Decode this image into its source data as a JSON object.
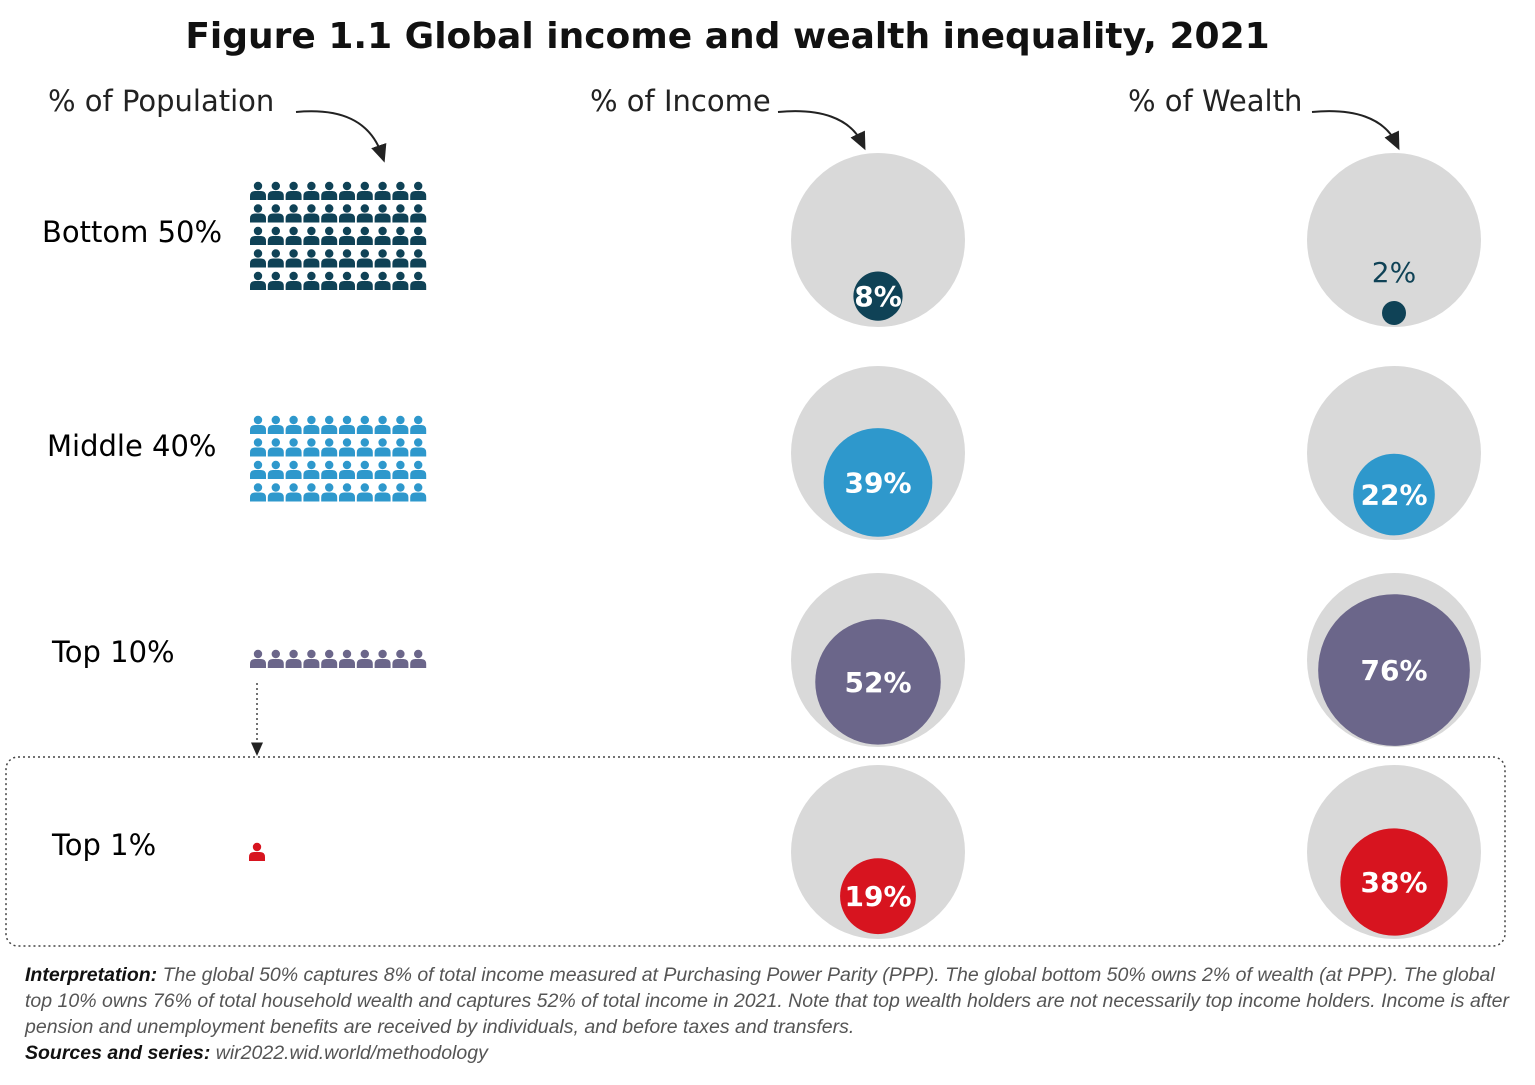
{
  "title": "Figure 1.1 Global income and wealth inequality, 2021",
  "chart_data": {
    "type": "bubble-infographic",
    "title": "Figure 1.1 Global income and wealth inequality, 2021",
    "column_headers": {
      "population": "% of Population",
      "income": "% of Income",
      "wealth": "% of Wealth"
    },
    "groups": [
      {
        "name": "Bottom 50%",
        "people_icons": 50,
        "income": 8,
        "income_label": "8%",
        "wealth": 2,
        "wealth_label": "2%",
        "color": "#0f4256"
      },
      {
        "name": "Middle 40%",
        "people_icons": 40,
        "income": 39,
        "income_label": "39%",
        "wealth": 22,
        "wealth_label": "22%",
        "color": "#2e98cc"
      },
      {
        "name": "Top 10%",
        "people_icons": 10,
        "income": 52,
        "income_label": "52%",
        "wealth": 76,
        "wealth_label": "76%",
        "color": "#6b668a"
      },
      {
        "name": "Top 1%",
        "people_icons": 1,
        "income": 19,
        "income_label": "19%",
        "wealth": 38,
        "wealth_label": "38%",
        "color": "#d7141f"
      }
    ],
    "background_circle_color": "#d9d9d9"
  },
  "footer": {
    "interpretation_label": "Interpretation:",
    "interpretation_text": " The global 50% captures 8% of total income measured at Purchasing Power Parity (PPP). The global bottom 50% owns 2% of wealth (at PPP). The global top 10% owns 76% of total household wealth and captures 52% of total income in 2021. Note that top wealth holders are not necessarily top income holders. Income is after pension and unemployment benefits are received by individuals, and before taxes and transfers.",
    "sources_label": "Sources and series:",
    "sources_text": " wir2022.wid.world/methodology"
  }
}
